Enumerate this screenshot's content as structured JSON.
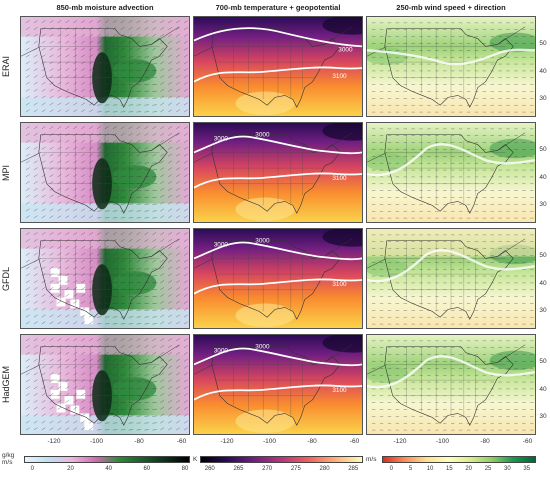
{
  "columns": [
    {
      "title": "850-mb moisture advection"
    },
    {
      "title": "700-mb temperature + geopotential"
    },
    {
      "title": "250-mb wind speed + direction"
    }
  ],
  "rows": [
    {
      "model": "ERAI"
    },
    {
      "model": "MPI"
    },
    {
      "model": "GFDL"
    },
    {
      "model": "HadGEM"
    }
  ],
  "contour_labels": {
    "ERAI": [
      "3000",
      "3100"
    ],
    "MPI": [
      "3000",
      "3000",
      "3100"
    ],
    "GFDL": [
      "3000",
      "3000",
      "3100"
    ],
    "HadGEM": [
      "3000",
      "3000",
      "3100"
    ]
  },
  "lon_ticks": [
    "-120",
    "-100",
    "-80",
    "-60"
  ],
  "lat_ticks": [
    "50",
    "40",
    "30"
  ],
  "colorbars": [
    {
      "unit": "g/kg m/s",
      "ticks": [
        "0",
        "20",
        "40",
        "60",
        "80"
      ],
      "colors": [
        "#e8f4fb",
        "#bfe0f2",
        "#e8b7dc",
        "#d46bb5",
        "#2f8a3a",
        "#1a5e2a",
        "#0d2f18",
        "#000000"
      ]
    },
    {
      "unit": "K",
      "ticks": [
        "260",
        "265",
        "270",
        "275",
        "280",
        "285"
      ],
      "colors": [
        "#000004",
        "#2c0b57",
        "#721f81",
        "#b73779",
        "#f1605d",
        "#feaf77",
        "#fcfdbf"
      ]
    },
    {
      "unit": "m/s",
      "ticks": [
        "0",
        "5",
        "10",
        "15",
        "20",
        "25",
        "30",
        "35"
      ],
      "colors": [
        "#d7301f",
        "#fc8d59",
        "#fee08b",
        "#ffffbf",
        "#d9ef8b",
        "#91cf60",
        "#1a9850",
        "#006837"
      ]
    }
  ]
}
